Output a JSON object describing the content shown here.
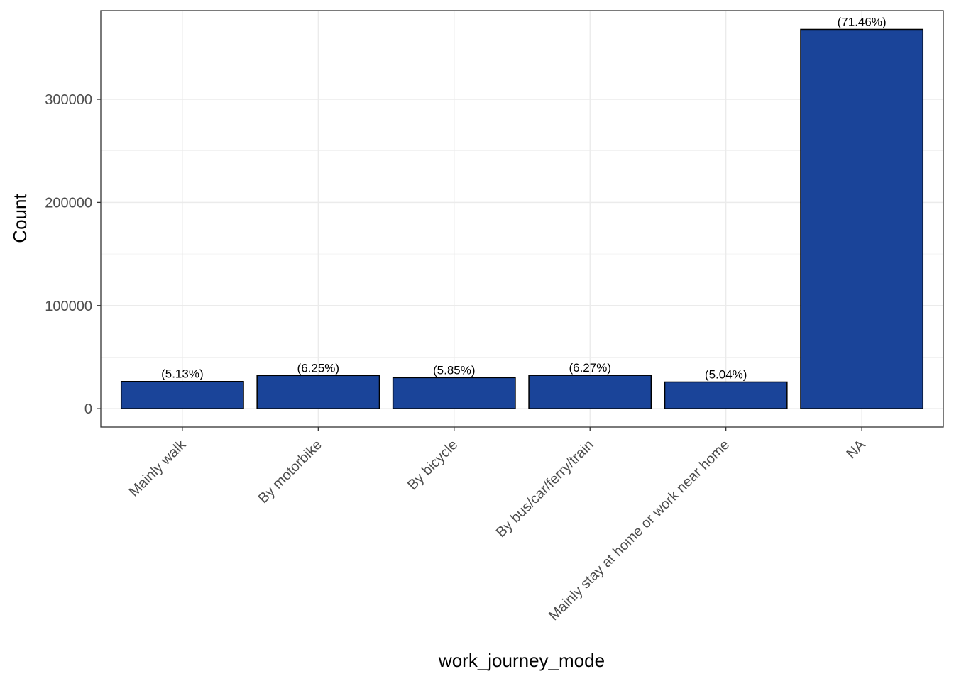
{
  "chart_data": {
    "type": "bar",
    "xlabel": "work_journey_mode",
    "ylabel": "Count",
    "categories": [
      "Mainly walk",
      "By motorbike",
      "By bicycle",
      "By bus/car/ferry/train",
      "Mainly stay at home or work near home",
      "NA"
    ],
    "values": [
      26400,
      32200,
      30100,
      32300,
      25900,
      367800
    ],
    "labels": [
      "(5.13%)",
      "(6.25%)",
      "(5.85%)",
      "(6.27%)",
      "(5.04%)",
      "(71.46%)"
    ],
    "ylim": [
      -17800,
      386000
    ],
    "yticks": [
      0,
      100000,
      200000,
      300000
    ],
    "ytick_labels": [
      "0",
      "100000",
      "200000",
      "300000"
    ],
    "grid": true,
    "legend": "none",
    "colors": {
      "bar_fill": "#1a4499",
      "bar_stroke": "#000000",
      "grid": "#ebebeb",
      "panel_border": "#333333"
    }
  }
}
